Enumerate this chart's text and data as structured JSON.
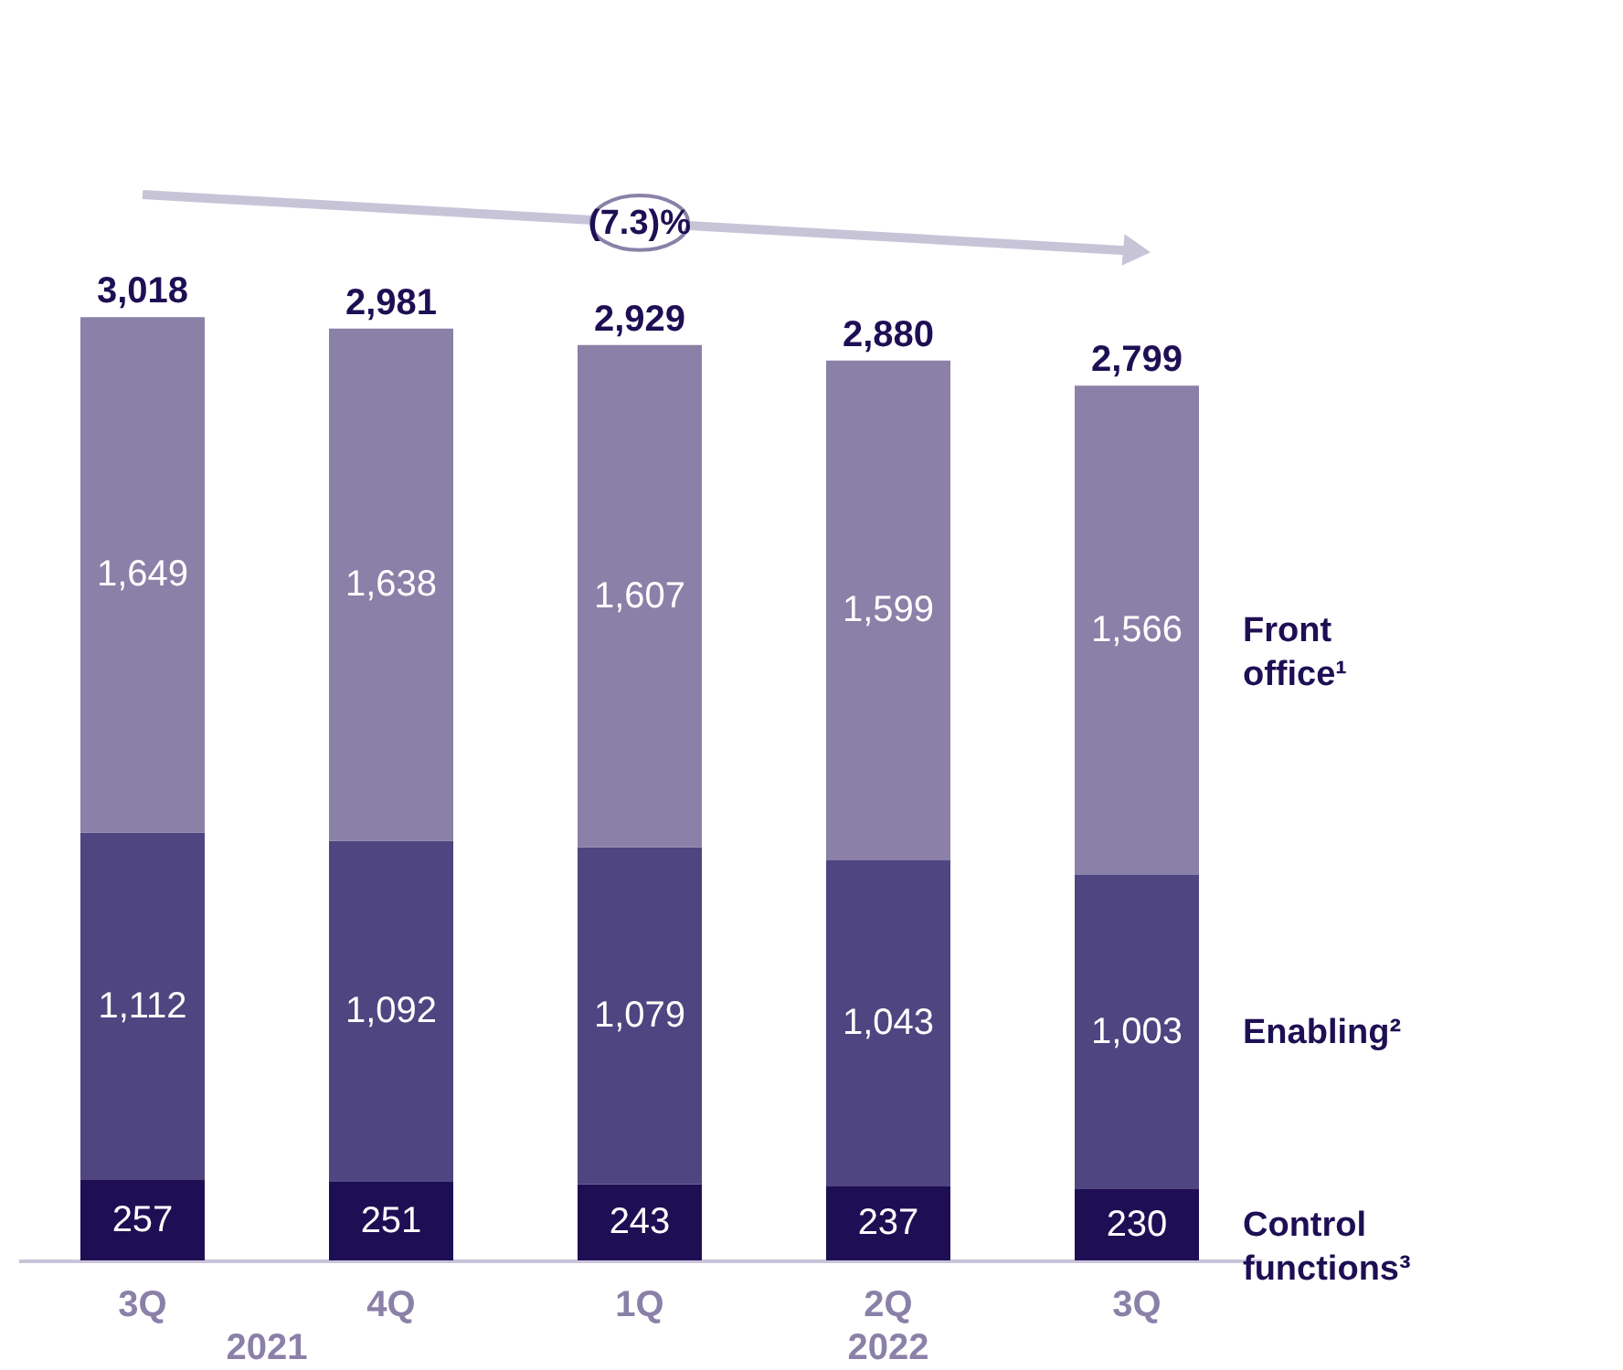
{
  "chart_data": {
    "type": "bar",
    "stacked": true,
    "categories": [
      "3Q",
      "4Q",
      "1Q",
      "2Q",
      "3Q"
    ],
    "series": [
      {
        "name": "Control functions³",
        "color": "#1e0f54",
        "values": [
          257,
          251,
          243,
          237,
          230
        ],
        "value_labels": [
          "257",
          "251",
          "243",
          "237",
          "230"
        ]
      },
      {
        "name": "Enabling²",
        "color": "#4f4580",
        "values": [
          1112,
          1092,
          1079,
          1043,
          1003
        ],
        "value_labels": [
          "1,112",
          "1,092",
          "1,079",
          "1,043",
          "1,003"
        ]
      },
      {
        "name": "Front office¹",
        "color": "#8a80a8",
        "values": [
          1649,
          1638,
          1607,
          1599,
          1566
        ],
        "value_labels": [
          "1,649",
          "1,638",
          "1,607",
          "1,599",
          "1,566"
        ]
      }
    ],
    "totals": [
      "3,018",
      "2,981",
      "2,929",
      "2,880",
      "2,799"
    ],
    "annotations": [
      "(7.3)%",
      "2021",
      "2022"
    ]
  }
}
